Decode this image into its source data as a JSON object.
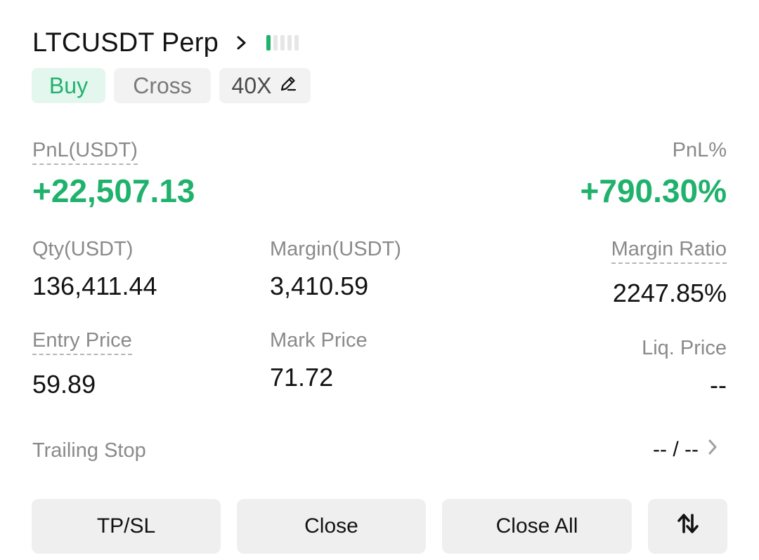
{
  "header": {
    "symbol": "LTCUSDT Perp",
    "icons": {
      "chevron": "chevron-right-icon",
      "signal": "signal-strength-icon"
    },
    "signal_level": {
      "active_bars": 1,
      "total_bars": 5
    }
  },
  "tags": {
    "side": "Buy",
    "margin_mode": "Cross",
    "leverage": "40X",
    "leverage_icon": "edit-pencil-icon"
  },
  "pnl": {
    "label": "PnL(USDT)",
    "value": "+22,507.13",
    "pct_label": "PnL%",
    "pct_value": "+790.30%"
  },
  "stats": {
    "qty_label": "Qty(USDT)",
    "qty_value": "136,411.44",
    "margin_label": "Margin(USDT)",
    "margin_value": "3,410.59",
    "margin_ratio_label": "Margin Ratio",
    "margin_ratio_value": "2247.85%",
    "entry_label": "Entry Price",
    "entry_value": "59.89",
    "mark_label": "Mark Price",
    "mark_value": "71.72",
    "liq_label": "Liq. Price",
    "liq_value": "--"
  },
  "trailing": {
    "label": "Trailing Stop",
    "value": "-- / --"
  },
  "actions": {
    "tpsl": "TP/SL",
    "close": "Close",
    "close_all": "Close All",
    "reverse_icon": "reverse-position-icon"
  },
  "colors": {
    "accent_green": "#20b26c",
    "buy_bg": "#e3f7ef",
    "muted": "#8a8a8a",
    "button_bg": "#efefef"
  }
}
